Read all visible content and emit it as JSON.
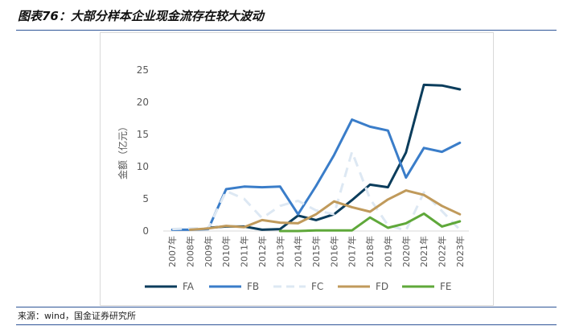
{
  "header": {
    "title": "图表76：大部分样本企业现金流存在较大波动"
  },
  "footer": {
    "source": "来源：wind，国金证券研究所"
  },
  "chart_data": {
    "type": "line",
    "title": "",
    "xlabel": "",
    "ylabel": "金额（亿元）",
    "ylim": [
      0,
      25
    ],
    "yticks": [
      "0",
      "5",
      "10",
      "15",
      "20",
      "25"
    ],
    "grid": false,
    "legend_position": "bottom",
    "categories": [
      "2007年",
      "2008年",
      "2009年",
      "2010年",
      "2011年",
      "2012年",
      "2013年",
      "2014年",
      "2015年",
      "2016年",
      "2017年",
      "2018年",
      "2019年",
      "2020年",
      "2021年",
      "2022年",
      "2023年"
    ],
    "series": [
      {
        "name": "FA",
        "color": "#0b3d5c",
        "dash": "solid",
        "values": [
          null,
          null,
          0.5,
          0.7,
          0.7,
          0.2,
          0.3,
          2.4,
          1.7,
          2.6,
          4.8,
          7.2,
          6.8,
          12.2,
          22.7,
          22.6,
          22.0
        ]
      },
      {
        "name": "FB",
        "color": "#3a7dc9",
        "dash": "solid",
        "values": [
          0.2,
          0.2,
          0.3,
          6.5,
          6.9,
          6.8,
          6.9,
          2.6,
          7.0,
          11.8,
          17.3,
          16.2,
          15.6,
          8.3,
          12.9,
          12.3,
          13.7
        ]
      },
      {
        "name": "FC",
        "color": "#dde8f3",
        "dash": "dash",
        "values": [
          0.3,
          0.4,
          0.4,
          6.2,
          5.0,
          2.0,
          3.9,
          4.7,
          3.2,
          2.6,
          12.3,
          5.0,
          0.9,
          0.1,
          6.0,
          3.1,
          0.2
        ]
      },
      {
        "name": "FD",
        "color": "#c09a5b",
        "dash": "solid",
        "values": [
          null,
          0.2,
          0.4,
          0.8,
          0.6,
          1.7,
          1.3,
          1.2,
          2.6,
          4.6,
          3.7,
          3.0,
          4.9,
          6.3,
          5.6,
          3.9,
          2.6
        ]
      },
      {
        "name": "FE",
        "color": "#5fa83a",
        "dash": "solid",
        "values": [
          null,
          null,
          null,
          null,
          null,
          null,
          0.0,
          0.0,
          0.1,
          0.1,
          0.1,
          2.1,
          0.5,
          1.2,
          2.7,
          0.7,
          1.5
        ]
      }
    ]
  }
}
